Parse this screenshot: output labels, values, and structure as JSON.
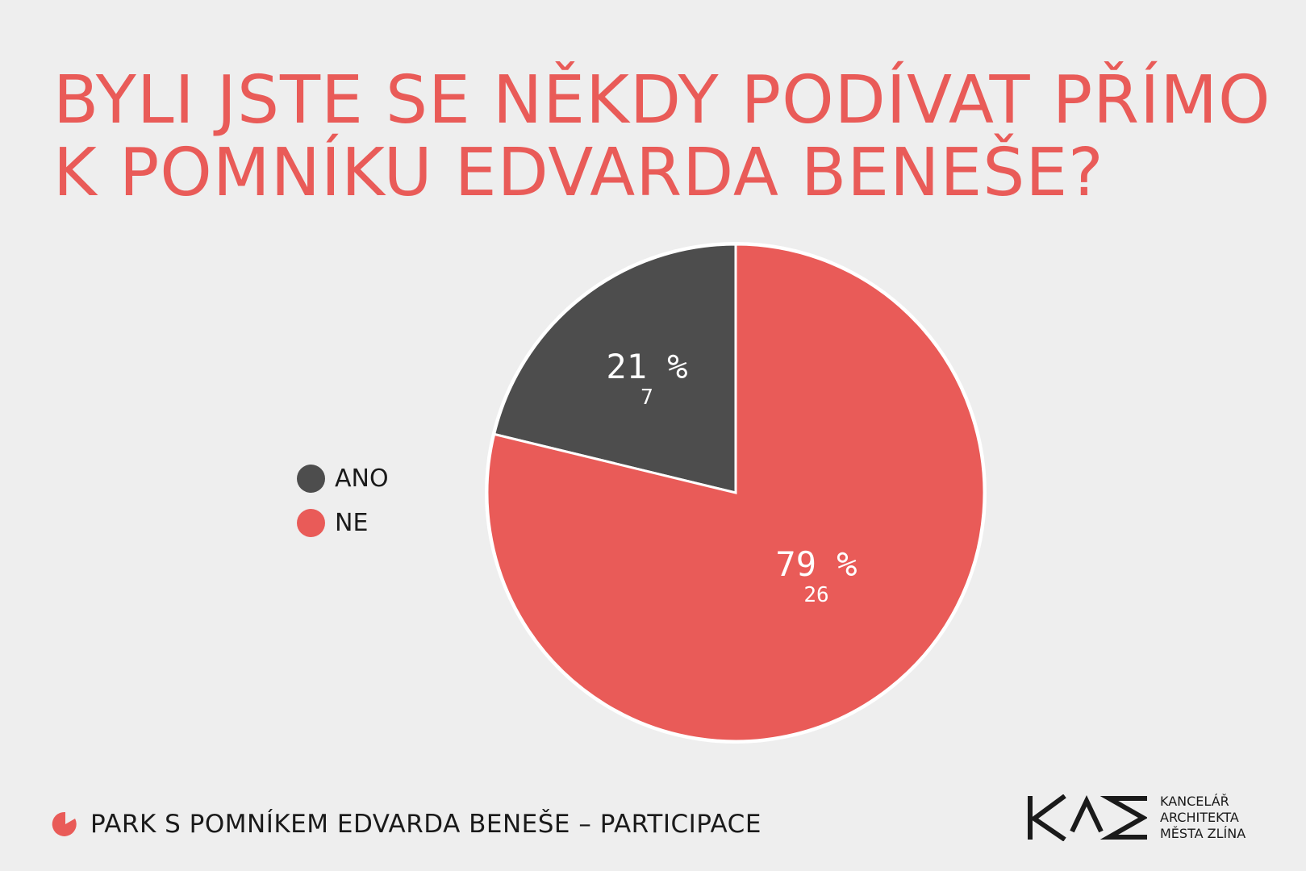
{
  "chart_data": {
    "type": "pie",
    "title": [
      "BYLI JSTE SE NĚKDY PODÍVAT PŘÍMO",
      "K POMNÍKU EDVARDA BENEŠE?"
    ],
    "slices": [
      {
        "name": "ANO",
        "value": 7,
        "percent_label": "21 %",
        "count_label": "7",
        "color": "#4d4d4d"
      },
      {
        "name": "NE",
        "value": 26,
        "percent_label": "79 %",
        "count_label": "26",
        "color": "#e95b58"
      }
    ],
    "legend_position": "left"
  },
  "footer": {
    "text": "PARK S POMNÍKEM EDVARDA BENEŠE – PARTICIPACE"
  },
  "logo": {
    "mark": "KAM",
    "lines": [
      "KANCELÁŘ",
      "ARCHITEKTA",
      "MĚSTA ZLÍNA"
    ]
  },
  "colors": {
    "accent": "#e95b58",
    "dark": "#4d4d4d",
    "background": "#eeeeee"
  }
}
